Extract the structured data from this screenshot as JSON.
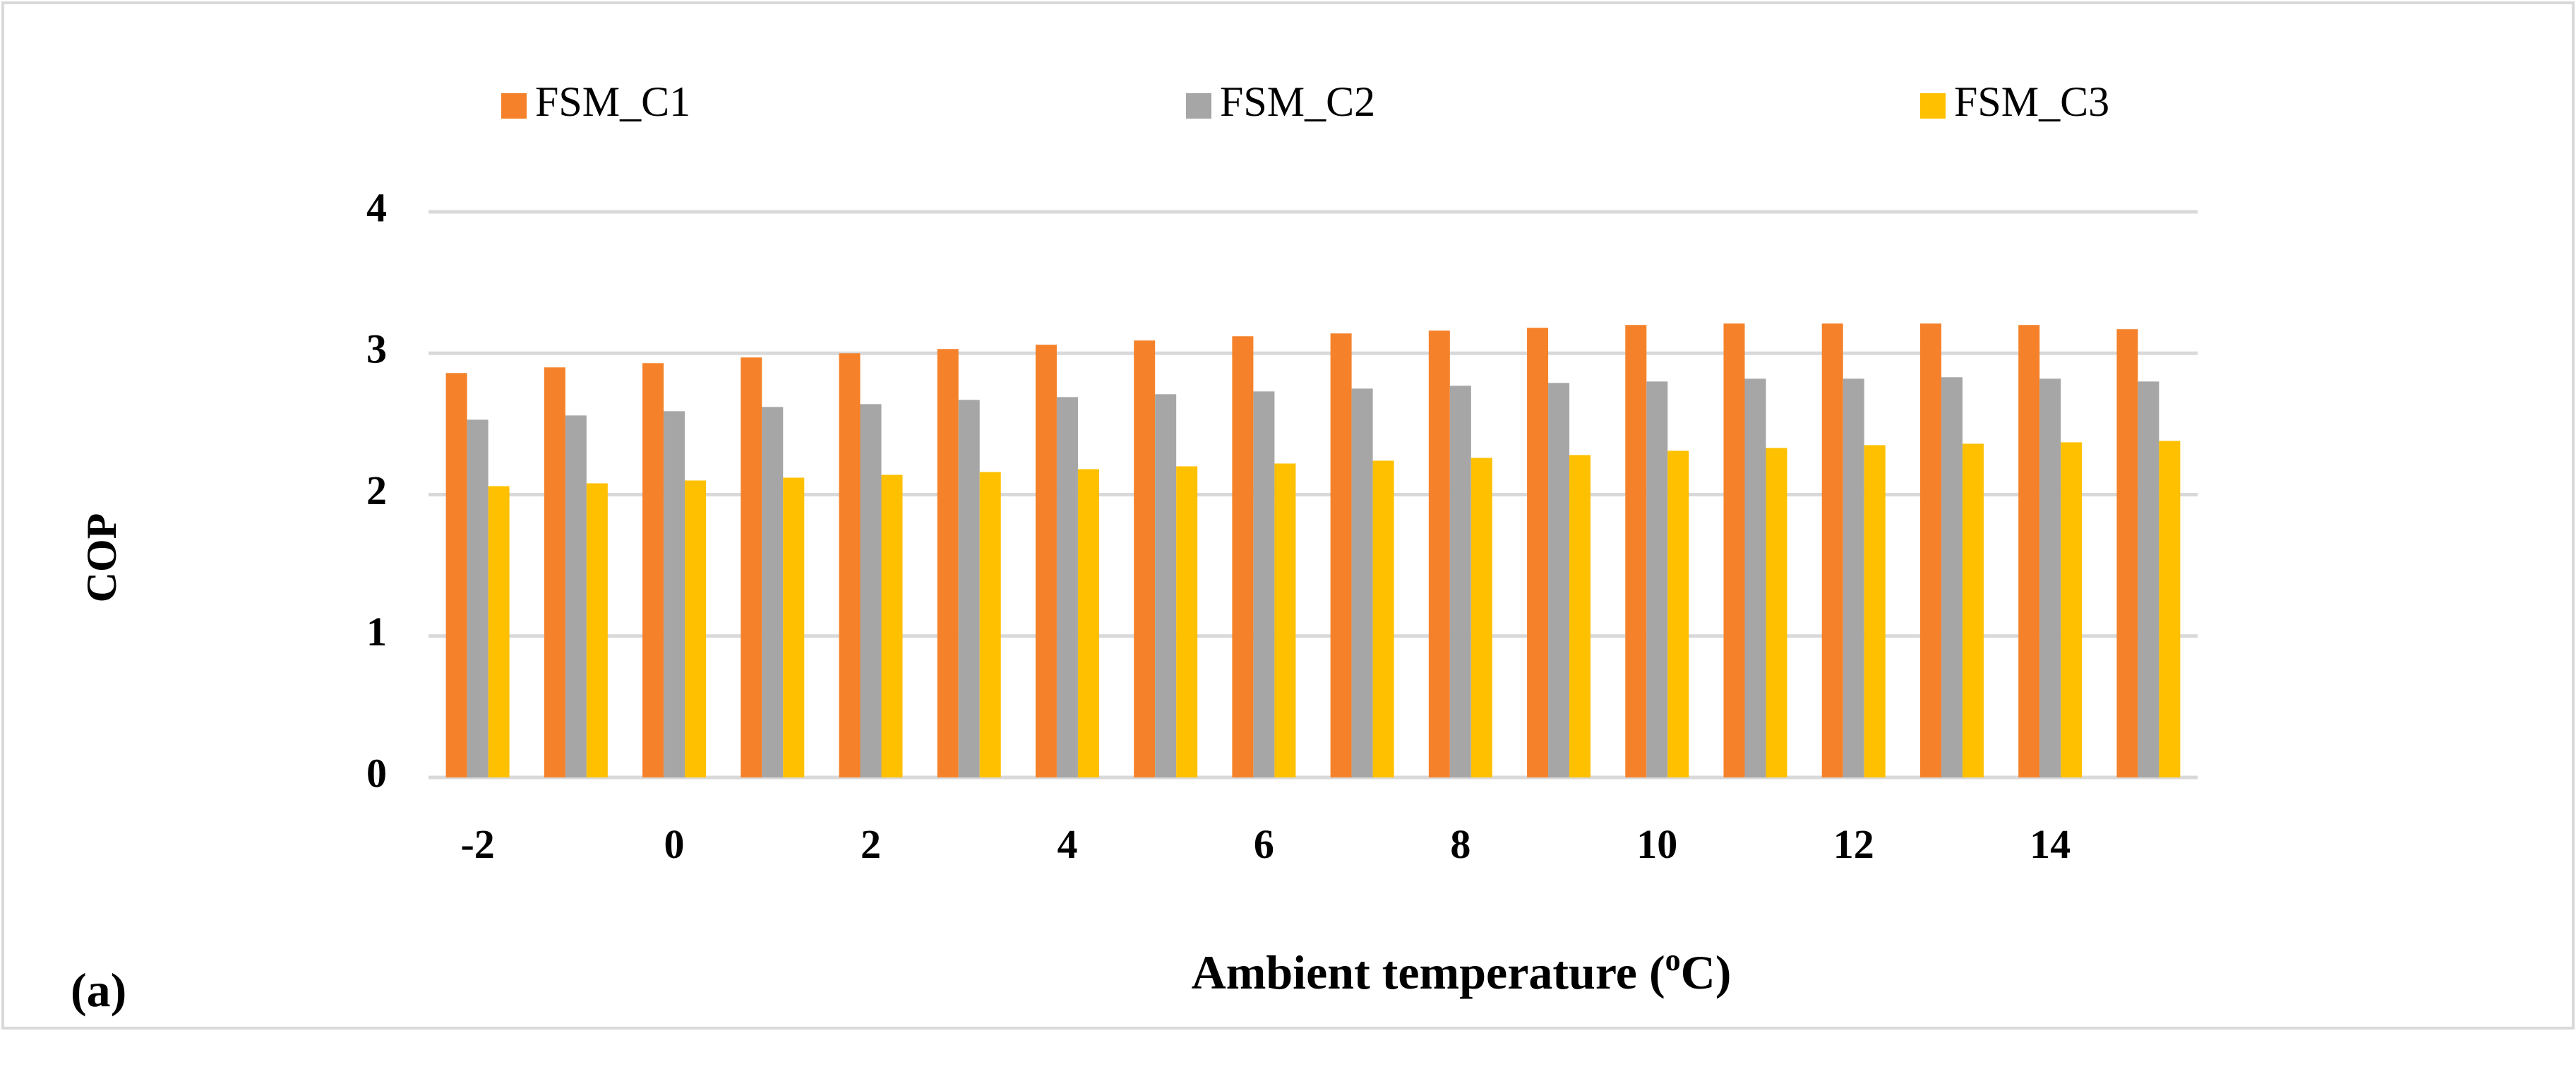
{
  "panel_label": "(a)",
  "chart_data": {
    "type": "bar",
    "xlabel_main": "Ambient temperature (",
    "xlabel_sup": "o",
    "xlabel_end": "C)",
    "ylabel": "COP",
    "ylim": [
      0,
      4
    ],
    "yticks": [
      "0",
      "1",
      "2",
      "3",
      "4"
    ],
    "categories": [
      "-2",
      "-1",
      "0",
      "1",
      "2",
      "3",
      "4",
      "5",
      "6",
      "7",
      "8",
      "9",
      "10",
      "11",
      "12",
      "13",
      "14",
      "15"
    ],
    "x_tick_labels": [
      "-2",
      "",
      "0",
      "",
      "2",
      "",
      "4",
      "",
      "6",
      "",
      "8",
      "",
      "10",
      "",
      "12",
      "",
      "14",
      ""
    ],
    "grid": true,
    "legend_position": "top",
    "series": [
      {
        "name": "FSM_C1",
        "color": "#F5822A",
        "values": [
          2.86,
          2.9,
          2.93,
          2.97,
          3.0,
          3.03,
          3.06,
          3.09,
          3.12,
          3.14,
          3.16,
          3.18,
          3.2,
          3.21,
          3.21,
          3.21,
          3.2,
          3.17
        ]
      },
      {
        "name": "FSM_C2",
        "color": "#A6A6A6",
        "values": [
          2.53,
          2.56,
          2.59,
          2.62,
          2.64,
          2.67,
          2.69,
          2.71,
          2.73,
          2.75,
          2.77,
          2.79,
          2.8,
          2.82,
          2.82,
          2.83,
          2.82,
          2.8
        ]
      },
      {
        "name": "FSM_C3",
        "color": "#FFC000",
        "values": [
          2.06,
          2.08,
          2.1,
          2.12,
          2.14,
          2.16,
          2.18,
          2.2,
          2.22,
          2.24,
          2.26,
          2.28,
          2.31,
          2.33,
          2.35,
          2.36,
          2.37,
          2.38
        ]
      }
    ]
  }
}
